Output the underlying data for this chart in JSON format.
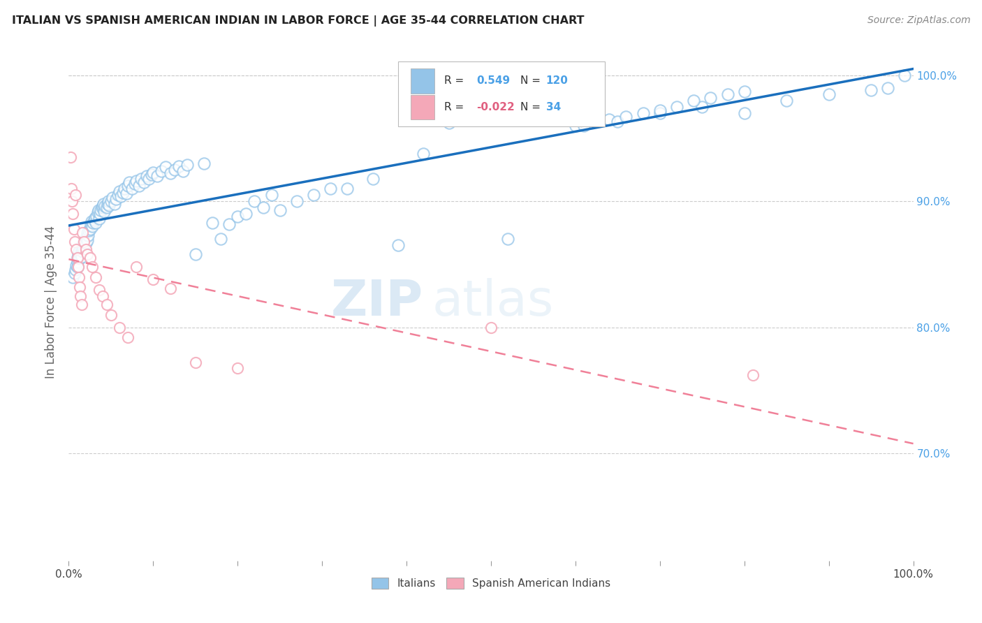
{
  "title": "ITALIAN VS SPANISH AMERICAN INDIAN IN LABOR FORCE | AGE 35-44 CORRELATION CHART",
  "source": "Source: ZipAtlas.com",
  "ylabel": "In Labor Force | Age 35-44",
  "xlim": [
    0.0,
    1.0
  ],
  "ylim": [
    0.615,
    1.025
  ],
  "ytick_positions": [
    0.7,
    0.8,
    0.9,
    1.0
  ],
  "ytick_labels": [
    "70.0%",
    "80.0%",
    "90.0%",
    "100.0%"
  ],
  "legend_italian_R": "0.549",
  "legend_italian_N": "120",
  "legend_spanish_R": "-0.022",
  "legend_spanish_N": "34",
  "italian_color": "#94c4e8",
  "spanish_color": "#f4a8b8",
  "italian_line_color": "#1a6fbd",
  "spanish_line_color": "#f08098",
  "watermark_zip": "ZIP",
  "watermark_atlas": "atlas",
  "italian_scatter_x": [
    0.005,
    0.007,
    0.008,
    0.009,
    0.01,
    0.01,
    0.01,
    0.011,
    0.012,
    0.013,
    0.014,
    0.015,
    0.015,
    0.016,
    0.016,
    0.017,
    0.018,
    0.019,
    0.02,
    0.02,
    0.021,
    0.022,
    0.022,
    0.023,
    0.024,
    0.025,
    0.026,
    0.027,
    0.028,
    0.029,
    0.03,
    0.031,
    0.032,
    0.033,
    0.034,
    0.035,
    0.036,
    0.037,
    0.038,
    0.039,
    0.04,
    0.041,
    0.042,
    0.043,
    0.045,
    0.046,
    0.047,
    0.048,
    0.05,
    0.052,
    0.054,
    0.056,
    0.058,
    0.06,
    0.062,
    0.064,
    0.066,
    0.068,
    0.07,
    0.072,
    0.075,
    0.078,
    0.08,
    0.083,
    0.086,
    0.089,
    0.092,
    0.095,
    0.098,
    0.1,
    0.105,
    0.11,
    0.115,
    0.12,
    0.125,
    0.13,
    0.135,
    0.14,
    0.15,
    0.16,
    0.17,
    0.18,
    0.19,
    0.2,
    0.21,
    0.22,
    0.23,
    0.24,
    0.25,
    0.27,
    0.29,
    0.31,
    0.33,
    0.36,
    0.39,
    0.42,
    0.45,
    0.48,
    0.52,
    0.56,
    0.6,
    0.64,
    0.7,
    0.75,
    0.8,
    0.85,
    0.9,
    0.95,
    0.97,
    0.99,
    0.61,
    0.65,
    0.66,
    0.68,
    0.7,
    0.72,
    0.74,
    0.76,
    0.78,
    0.8
  ],
  "italian_scatter_y": [
    0.84,
    0.843,
    0.846,
    0.849,
    0.852,
    0.848,
    0.855,
    0.858,
    0.86,
    0.855,
    0.858,
    0.862,
    0.856,
    0.86,
    0.865,
    0.863,
    0.868,
    0.865,
    0.87,
    0.867,
    0.872,
    0.875,
    0.869,
    0.873,
    0.877,
    0.878,
    0.881,
    0.884,
    0.88,
    0.883,
    0.885,
    0.887,
    0.883,
    0.888,
    0.891,
    0.893,
    0.886,
    0.89,
    0.893,
    0.895,
    0.896,
    0.898,
    0.892,
    0.896,
    0.895,
    0.898,
    0.9,
    0.897,
    0.9,
    0.903,
    0.898,
    0.902,
    0.905,
    0.908,
    0.904,
    0.907,
    0.91,
    0.906,
    0.912,
    0.915,
    0.91,
    0.914,
    0.916,
    0.912,
    0.918,
    0.915,
    0.92,
    0.918,
    0.921,
    0.923,
    0.92,
    0.924,
    0.927,
    0.922,
    0.925,
    0.928,
    0.924,
    0.929,
    0.858,
    0.93,
    0.883,
    0.87,
    0.882,
    0.888,
    0.89,
    0.9,
    0.895,
    0.905,
    0.893,
    0.9,
    0.905,
    0.91,
    0.91,
    0.918,
    0.865,
    0.938,
    0.962,
    0.975,
    0.87,
    0.99,
    0.96,
    0.965,
    0.97,
    0.975,
    0.97,
    0.98,
    0.985,
    0.988,
    0.99,
    1.0,
    0.96,
    0.963,
    0.967,
    0.97,
    0.972,
    0.975,
    0.98,
    0.982,
    0.985,
    0.987
  ],
  "spanish_scatter_x": [
    0.002,
    0.003,
    0.004,
    0.005,
    0.006,
    0.007,
    0.008,
    0.009,
    0.01,
    0.011,
    0.012,
    0.013,
    0.014,
    0.015,
    0.016,
    0.018,
    0.02,
    0.022,
    0.025,
    0.028,
    0.032,
    0.036,
    0.04,
    0.045,
    0.05,
    0.06,
    0.07,
    0.08,
    0.1,
    0.12,
    0.15,
    0.2,
    0.5,
    0.81
  ],
  "spanish_scatter_y": [
    0.935,
    0.91,
    0.9,
    0.89,
    0.878,
    0.868,
    0.905,
    0.862,
    0.855,
    0.848,
    0.84,
    0.832,
    0.825,
    0.818,
    0.875,
    0.868,
    0.862,
    0.858,
    0.855,
    0.848,
    0.84,
    0.83,
    0.825,
    0.818,
    0.81,
    0.8,
    0.792,
    0.848,
    0.838,
    0.831,
    0.772,
    0.768,
    0.8,
    0.762
  ]
}
